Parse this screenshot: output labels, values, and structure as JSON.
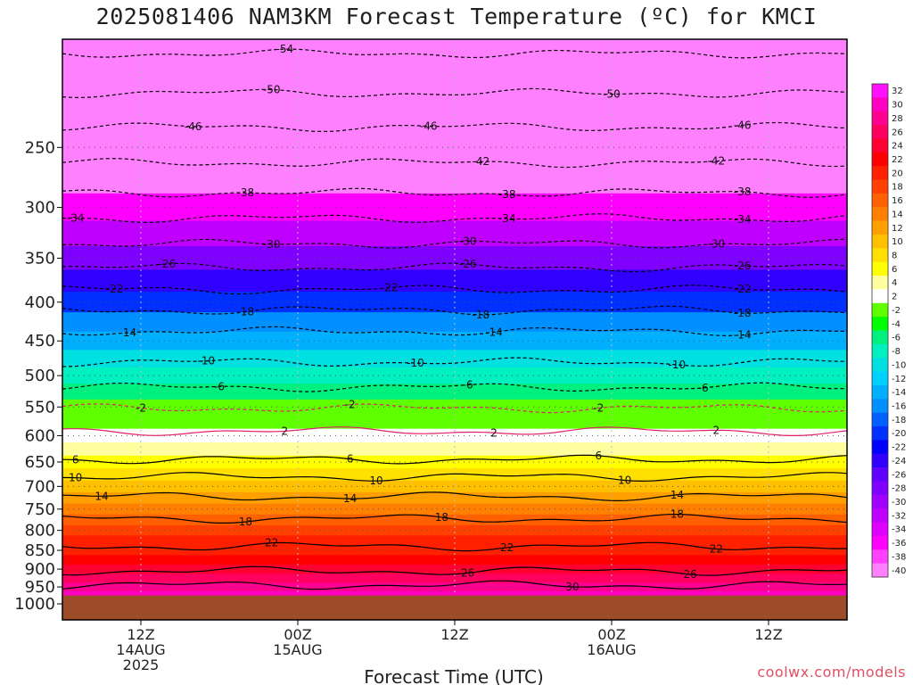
{
  "title": "2025081406 NAM3KM Forecast Temperature (ºC) for KMCI",
  "credit": "coolwx.com/models",
  "chart_data": {
    "type": "heatmap",
    "title": "2025081406 NAM3KM Forecast Temperature (ºC) for KMCI",
    "xlabel": "Forecast Time (UTC)",
    "ylabel": "",
    "x_range_hours": [
      0,
      60
    ],
    "y_range_hPa": [
      1050,
      180
    ],
    "y_scale": "log-pressure",
    "pressure_ticks": [
      250,
      300,
      350,
      400,
      450,
      500,
      550,
      600,
      650,
      700,
      750,
      800,
      850,
      900,
      950,
      1000
    ],
    "time_ticks": [
      {
        "hour": 6,
        "line1": "12Z",
        "line2": "14AUG",
        "line3": "2025"
      },
      {
        "hour": 18,
        "line1": "00Z",
        "line2": "15AUG",
        "line3": ""
      },
      {
        "hour": 30,
        "line1": "12Z",
        "line2": "",
        "line3": ""
      },
      {
        "hour": 42,
        "line1": "00Z",
        "line2": "16AUG",
        "line3": ""
      },
      {
        "hour": 54,
        "line1": "12Z",
        "line2": "",
        "line3": ""
      }
    ],
    "surface_pressure_hPa": 975,
    "colorbar_levels": [
      32,
      30,
      28,
      26,
      24,
      22,
      20,
      18,
      16,
      14,
      12,
      10,
      8,
      6,
      4,
      2,
      -2,
      -4,
      -6,
      -8,
      -10,
      -12,
      -14,
      -16,
      -18,
      -20,
      -22,
      -24,
      -26,
      -28,
      -30,
      -32,
      -34,
      -36,
      -38,
      -40
    ],
    "colorbar_colors": [
      "#ff10ff",
      "#ff00c0",
      "#ff0090",
      "#ff0060",
      "#ff0030",
      "#ff0000",
      "#ff2000",
      "#ff4000",
      "#ff6000",
      "#ff8000",
      "#ffa000",
      "#ffc000",
      "#ffe000",
      "#ffff00",
      "#ffffa0",
      "#ffffff",
      "#60ff00",
      "#00ff00",
      "#00f080",
      "#00f0c0",
      "#00e0e0",
      "#00d0ff",
      "#00b0ff",
      "#0090ff",
      "#0060ff",
      "#0030ff",
      "#0000ff",
      "#3000ff",
      "#6000ff",
      "#8000ff",
      "#a000ff",
      "#c000ff",
      "#e000ff",
      "#ff00ff",
      "#ff40ff",
      "#ff80ff"
    ],
    "temperature_profile": [
      {
        "p": 180,
        "t": -56
      },
      {
        "p": 200,
        "t": -52
      },
      {
        "p": 225,
        "t": -48
      },
      {
        "p": 250,
        "t": -44
      },
      {
        "p": 275,
        "t": -40
      },
      {
        "p": 300,
        "t": -35
      },
      {
        "p": 325,
        "t": -31
      },
      {
        "p": 350,
        "t": -27
      },
      {
        "p": 375,
        "t": -23
      },
      {
        "p": 400,
        "t": -19
      },
      {
        "p": 425,
        "t": -16
      },
      {
        "p": 450,
        "t": -13
      },
      {
        "p": 475,
        "t": -10
      },
      {
        "p": 500,
        "t": -7
      },
      {
        "p": 525,
        "t": -5
      },
      {
        "p": 550,
        "t": -1
      },
      {
        "p": 575,
        "t": 1
      },
      {
        "p": 600,
        "t": 3
      },
      {
        "p": 625,
        "t": 5
      },
      {
        "p": 650,
        "t": 7
      },
      {
        "p": 675,
        "t": 9
      },
      {
        "p": 700,
        "t": 11
      },
      {
        "p": 725,
        "t": 13
      },
      {
        "p": 750,
        "t": 15
      },
      {
        "p": 775,
        "t": 17
      },
      {
        "p": 800,
        "t": 19
      },
      {
        "p": 825,
        "t": 20
      },
      {
        "p": 850,
        "t": 21
      },
      {
        "p": 875,
        "t": 23
      },
      {
        "p": 900,
        "t": 25
      },
      {
        "p": 925,
        "t": 27
      },
      {
        "p": 950,
        "t": 29
      },
      {
        "p": 975,
        "t": 31
      }
    ],
    "contours": [
      {
        "level": -54,
        "p": 188,
        "labels": [
          {
            "h": 17,
            "text": "-54"
          }
        ]
      },
      {
        "level": -50,
        "p": 212,
        "labels": [
          {
            "h": 16,
            "text": "-50"
          },
          {
            "h": 42,
            "text": "-50"
          }
        ]
      },
      {
        "level": -46,
        "p": 235,
        "labels": [
          {
            "h": 10,
            "text": "-46"
          },
          {
            "h": 28,
            "text": "-46"
          },
          {
            "h": 52,
            "text": "-46"
          }
        ]
      },
      {
        "level": -42,
        "p": 262,
        "labels": [
          {
            "h": 32,
            "text": "-42"
          },
          {
            "h": 50,
            "text": "-42"
          }
        ]
      },
      {
        "level": -38,
        "p": 287,
        "labels": [
          {
            "h": 14,
            "text": "-38"
          },
          {
            "h": 34,
            "text": "-38"
          },
          {
            "h": 52,
            "text": "-38"
          }
        ]
      },
      {
        "level": -34,
        "p": 310,
        "labels": [
          {
            "h": 1,
            "text": "-34"
          },
          {
            "h": 34,
            "text": "-34"
          },
          {
            "h": 52,
            "text": "-34"
          }
        ]
      },
      {
        "level": -30,
        "p": 335,
        "labels": [
          {
            "h": 16,
            "text": "-30"
          },
          {
            "h": 31,
            "text": "-30"
          },
          {
            "h": 50,
            "text": "-30"
          }
        ]
      },
      {
        "level": -26,
        "p": 360,
        "labels": [
          {
            "h": 8,
            "text": "-26"
          },
          {
            "h": 31,
            "text": "-26"
          },
          {
            "h": 52,
            "text": "-26"
          }
        ]
      },
      {
        "level": -22,
        "p": 385,
        "labels": [
          {
            "h": 4,
            "text": "-22"
          },
          {
            "h": 25,
            "text": "-22"
          },
          {
            "h": 52,
            "text": "-22"
          }
        ]
      },
      {
        "level": -18,
        "p": 410,
        "labels": [
          {
            "h": 14,
            "text": "-18"
          },
          {
            "h": 32,
            "text": "-18"
          },
          {
            "h": 52,
            "text": "-18"
          }
        ]
      },
      {
        "level": -14,
        "p": 437,
        "labels": [
          {
            "h": 5,
            "text": "-14"
          },
          {
            "h": 33,
            "text": "-14"
          },
          {
            "h": 52,
            "text": "-14"
          }
        ]
      },
      {
        "level": -10,
        "p": 480,
        "labels": [
          {
            "h": 11,
            "text": "-10"
          },
          {
            "h": 27,
            "text": "-10"
          },
          {
            "h": 47,
            "text": "-10"
          }
        ]
      },
      {
        "level": -6,
        "p": 518,
        "labels": [
          {
            "h": 12,
            "text": "-6"
          },
          {
            "h": 31,
            "text": "-6"
          },
          {
            "h": 49,
            "text": "-6"
          }
        ]
      },
      {
        "level": -2,
        "p": 552,
        "labels": [
          {
            "h": 6,
            "text": "-2"
          },
          {
            "h": 22,
            "text": "-2"
          },
          {
            "h": 41,
            "text": "-2"
          }
        ]
      },
      {
        "level": 2,
        "p": 592,
        "labels": [
          {
            "h": 17,
            "text": "2"
          },
          {
            "h": 33,
            "text": "2"
          },
          {
            "h": 50,
            "text": "2"
          }
        ]
      },
      {
        "level": 6,
        "p": 645,
        "labels": [
          {
            "h": 1,
            "text": "6"
          },
          {
            "h": 22,
            "text": "6"
          },
          {
            "h": 41,
            "text": "6"
          }
        ]
      },
      {
        "level": 10,
        "p": 680,
        "labels": [
          {
            "h": 1,
            "text": "10"
          },
          {
            "h": 24,
            "text": "10"
          },
          {
            "h": 43,
            "text": "10"
          }
        ]
      },
      {
        "level": 14,
        "p": 722,
        "labels": [
          {
            "h": 3,
            "text": "14"
          },
          {
            "h": 22,
            "text": "14"
          },
          {
            "h": 47,
            "text": "14"
          }
        ]
      },
      {
        "level": 18,
        "p": 772,
        "labels": [
          {
            "h": 14,
            "text": "18"
          },
          {
            "h": 29,
            "text": "18"
          },
          {
            "h": 47,
            "text": "18"
          }
        ]
      },
      {
        "level": 22,
        "p": 840,
        "labels": [
          {
            "h": 16,
            "text": "22"
          },
          {
            "h": 34,
            "text": "22"
          },
          {
            "h": 50,
            "text": "22"
          }
        ]
      },
      {
        "level": 26,
        "p": 905,
        "labels": [
          {
            "h": 31,
            "text": "26"
          },
          {
            "h": 48,
            "text": "26"
          }
        ]
      },
      {
        "level": 30,
        "p": 945,
        "labels": [
          {
            "h": 39,
            "text": "30"
          }
        ]
      }
    ]
  }
}
